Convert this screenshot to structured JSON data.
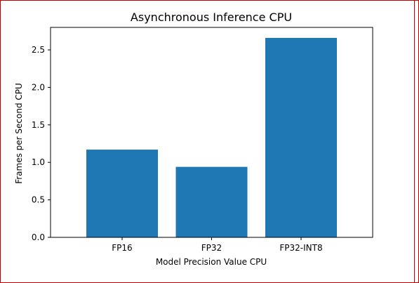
{
  "chart_data": {
    "type": "bar",
    "title": "Asynchronous Inference CPU",
    "xlabel": "Model Precision Value CPU",
    "ylabel": "Frames per Second CPU",
    "categories": [
      "FP16",
      "FP32",
      "FP32-INT8"
    ],
    "values": [
      1.17,
      0.94,
      2.66
    ],
    "ylim": [
      0,
      2.8
    ],
    "yticks": [
      0.0,
      0.5,
      1.0,
      1.5,
      2.0,
      2.5
    ],
    "ytick_labels": [
      "0.0",
      "0.5",
      "1.0",
      "1.5",
      "2.0",
      "2.5"
    ],
    "bar_color": "#1f77b4",
    "grid": false,
    "legend": false
  }
}
